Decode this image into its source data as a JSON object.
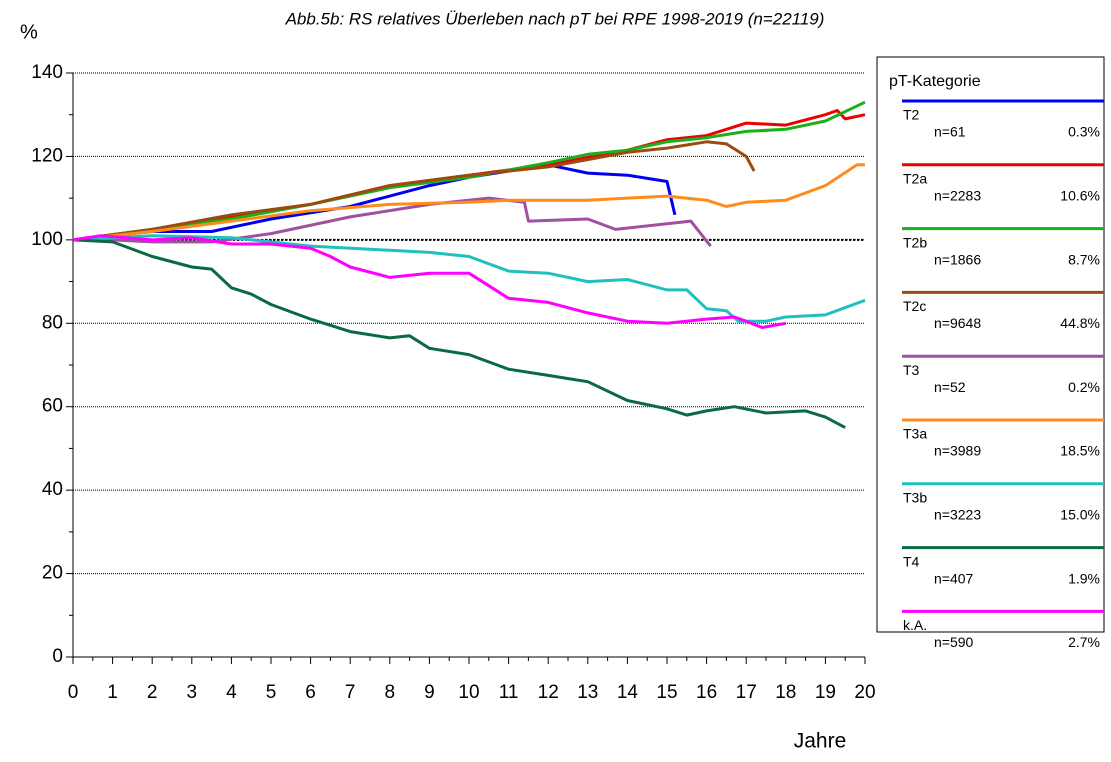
{
  "chart_data": {
    "type": "line",
    "title": "Abb.5b: RS relatives Überleben nach pT bei RPE 1998-2019  (n=22119)",
    "y_label": "%",
    "x_label": "Jahre",
    "legend_title": "pT-Kategorie",
    "xlim": [
      0,
      20
    ],
    "xticks": [
      0,
      1,
      2,
      3,
      4,
      5,
      6,
      7,
      8,
      9,
      10,
      11,
      12,
      13,
      14,
      15,
      16,
      17,
      18,
      19,
      20
    ],
    "ylim": [
      0,
      140
    ],
    "yticks": [
      0,
      20,
      40,
      60,
      80,
      100,
      120,
      140
    ],
    "grid": true,
    "reference_line": 100,
    "legend": "right",
    "series": [
      {
        "name": "T2",
        "n_label": "n=61",
        "share_label": "0.3%",
        "color": "#0000ee",
        "x": [
          0,
          1,
          2,
          3.5,
          5,
          7,
          9,
          10,
          12,
          13,
          14,
          15,
          15.2
        ],
        "values": [
          100,
          101,
          102,
          102,
          105,
          108,
          113,
          115,
          118,
          116,
          115.5,
          114,
          106
        ]
      },
      {
        "name": "T2a",
        "n_label": "n=2283",
        "share_label": "10.6%",
        "color": "#ee0000",
        "x": [
          0,
          2,
          4,
          6,
          8,
          10,
          12,
          14,
          15,
          16,
          17,
          18,
          19,
          19.3,
          19.5,
          20
        ],
        "values": [
          100,
          102.5,
          105.5,
          108.5,
          113,
          115.5,
          118,
          121.5,
          124,
          125,
          128,
          127.5,
          130,
          131,
          129,
          130
        ]
      },
      {
        "name": "T2b",
        "n_label": "n=1866",
        "share_label": "8.7%",
        "color": "#1ab01a",
        "x": [
          0,
          2,
          4,
          6,
          8,
          10,
          12,
          13,
          14,
          15,
          16,
          17,
          18,
          19,
          20
        ],
        "values": [
          100,
          102.5,
          105,
          108.5,
          112.5,
          115,
          118.5,
          120.5,
          121.5,
          123.5,
          124.5,
          126,
          126.5,
          128.5,
          133
        ]
      },
      {
        "name": "T2c",
        "n_label": "n=9648",
        "share_label": "44.8%",
        "color": "#9c4a10",
        "x": [
          0,
          2,
          4,
          6,
          8,
          10,
          12,
          14,
          15,
          16,
          16.5,
          17,
          17.2
        ],
        "values": [
          100,
          102.5,
          106,
          108.5,
          113,
          115.5,
          117.5,
          121,
          122,
          123.5,
          123,
          120,
          116.5
        ]
      },
      {
        "name": "T3",
        "n_label": "n=52",
        "share_label": "0.2%",
        "color": "#a050a0",
        "x": [
          0,
          1,
          2,
          3.5,
          5,
          7,
          9,
          10.5,
          11.4,
          11.5,
          13,
          13.7,
          15.6,
          16.1
        ],
        "values": [
          100,
          100,
          99.5,
          99.5,
          101.5,
          105.5,
          108.5,
          110,
          109,
          104.5,
          105,
          102.5,
          104.5,
          98.5
        ]
      },
      {
        "name": "T3a",
        "n_label": "n=3989",
        "share_label": "18.5%",
        "color": "#ff8c1a",
        "x": [
          0,
          2,
          4,
          6,
          8,
          10,
          11,
          12,
          13,
          14,
          15,
          16,
          16.5,
          17,
          18,
          19,
          19.8,
          20
        ],
        "values": [
          100,
          102,
          104.5,
          107,
          108.5,
          109,
          109.5,
          109.5,
          109.5,
          110,
          110.5,
          109.5,
          108,
          109,
          109.5,
          113,
          118,
          118
        ]
      },
      {
        "name": "T3b",
        "n_label": "n=3223",
        "share_label": "15.0%",
        "color": "#20c0c0",
        "x": [
          0,
          2,
          4,
          6,
          8,
          9,
          10,
          11,
          12,
          13,
          14,
          15,
          15.5,
          16,
          16.5,
          16.8,
          17.5,
          18,
          19,
          20
        ],
        "values": [
          100,
          101,
          100.5,
          98.5,
          97.5,
          97,
          96,
          92.5,
          92,
          90,
          90.5,
          88,
          88,
          83.5,
          83,
          80.5,
          80.5,
          81.5,
          82,
          85.5
        ]
      },
      {
        "name": "T4",
        "n_label": "n=407",
        "share_label": "1.9%",
        "color": "#0a6a40",
        "x": [
          0,
          1,
          2,
          3,
          3.5,
          4,
          4.5,
          5,
          6,
          7,
          8,
          8.5,
          9,
          10,
          11,
          12,
          13,
          14,
          15,
          15.5,
          16,
          16.7,
          17.5,
          18.5,
          19,
          19.5
        ],
        "values": [
          100,
          99.5,
          96,
          93.5,
          93,
          88.5,
          87,
          84.5,
          81,
          78,
          76.5,
          77,
          74,
          72.5,
          69,
          67.5,
          66,
          61.5,
          59.5,
          58,
          59,
          60,
          58.5,
          59,
          57.5,
          55
        ]
      },
      {
        "name": "k.A.",
        "n_label": "n=590",
        "share_label": "2.7%",
        "color": "#ff00ff",
        "x": [
          0,
          0.7,
          2,
          3,
          4,
          5,
          6,
          6.5,
          7,
          8,
          9,
          10,
          11,
          12,
          13,
          14,
          15,
          16,
          16.7,
          17,
          17.4,
          18
        ],
        "values": [
          100,
          101,
          100,
          100.5,
          99,
          99,
          98,
          96,
          93.5,
          91,
          92,
          92,
          86,
          85,
          82.5,
          80.5,
          80,
          81,
          81.5,
          80.5,
          79,
          80
        ]
      }
    ]
  }
}
